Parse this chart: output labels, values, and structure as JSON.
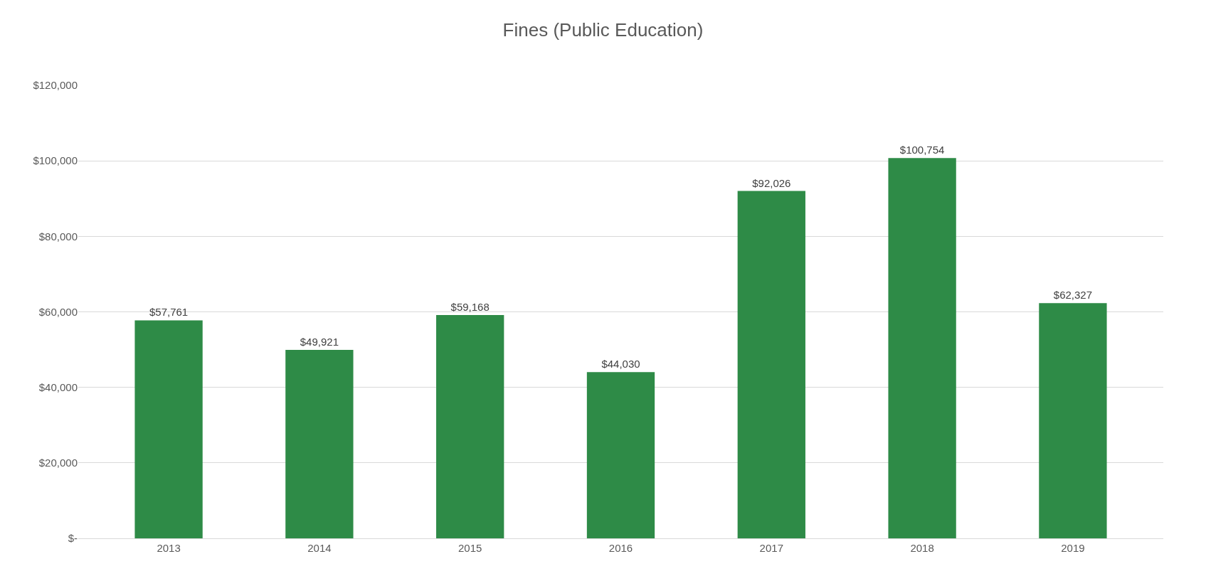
{
  "chart_data": {
    "type": "bar",
    "title": "Fines (Public Education)",
    "categories": [
      "2013",
      "2014",
      "2015",
      "2016",
      "2017",
      "2018",
      "2019"
    ],
    "values": [
      57761,
      49921,
      59168,
      44030,
      92026,
      100754,
      62327
    ],
    "value_labels": [
      "$57,761",
      "$49,921",
      "$59,168",
      "$44,030",
      "$92,026",
      "$100,754",
      "$62,327"
    ],
    "color": "#2e8b47",
    "ylim": [
      0,
      120000
    ],
    "yticks": [
      {
        "value": 0,
        "label": "$-"
      },
      {
        "value": 20000,
        "label": "$20,000"
      },
      {
        "value": 40000,
        "label": "$40,000"
      },
      {
        "value": 60000,
        "label": "$60,000"
      },
      {
        "value": 80000,
        "label": "$80,000"
      },
      {
        "value": 100000,
        "label": "$100,000"
      },
      {
        "value": 120000,
        "label": "$120,000"
      }
    ],
    "grid": "y"
  }
}
